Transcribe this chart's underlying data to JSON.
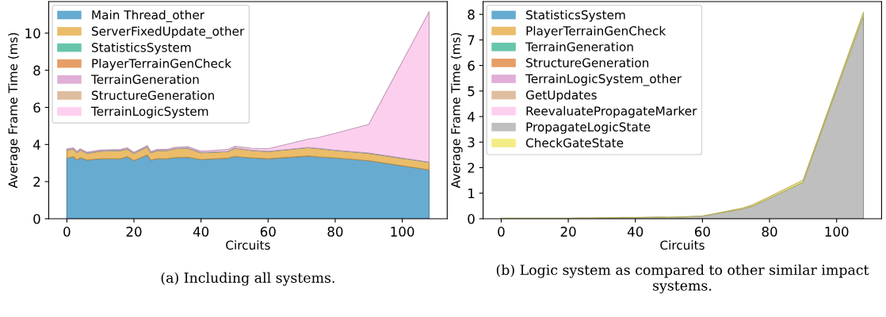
{
  "chart_data": [
    {
      "type": "area",
      "stacked": true,
      "xlabel": "Circuits",
      "ylabel": "Average Frame Time (ms)",
      "annotations": [
        "(a) Including all systems."
      ],
      "xlim": [
        -5.4,
        113.4
      ],
      "ylim": [
        0,
        11.7
      ],
      "xticks": [
        0,
        20,
        40,
        60,
        80,
        100
      ],
      "yticks": [
        0,
        2,
        4,
        6,
        8,
        10
      ],
      "legend": "top left",
      "grid": false,
      "x": [
        0,
        2,
        3,
        4,
        6,
        10,
        16,
        18,
        20,
        24,
        25,
        27,
        30,
        32,
        36,
        40,
        48,
        50,
        55,
        60,
        72,
        75,
        80,
        90,
        108
      ],
      "series": [
        {
          "name": "Main Thread_other",
          "color": "#67abd1",
          "values": [
            3.26,
            3.34,
            3.16,
            3.29,
            3.16,
            3.23,
            3.23,
            3.34,
            3.13,
            3.44,
            3.16,
            3.23,
            3.23,
            3.29,
            3.31,
            3.19,
            3.26,
            3.35,
            3.28,
            3.23,
            3.38,
            3.33,
            3.28,
            3.13,
            2.63
          ]
        },
        {
          "name": "ServerFixedUpdate_other",
          "color": "#ebbc69",
          "values": [
            0.45,
            0.42,
            0.4,
            0.42,
            0.37,
            0.41,
            0.44,
            0.42,
            0.39,
            0.44,
            0.4,
            0.44,
            0.44,
            0.48,
            0.49,
            0.37,
            0.36,
            0.45,
            0.4,
            0.39,
            0.45,
            0.45,
            0.4,
            0.4,
            0.41
          ]
        },
        {
          "name": "StatisticsSystem",
          "color": "#67c5ab",
          "values": [
            0.01,
            0.01,
            0.01,
            0.01,
            0.01,
            0.01,
            0.01,
            0.01,
            0.01,
            0.01,
            0.01,
            0.01,
            0.01,
            0.01,
            0.01,
            0.01,
            0.01,
            0.01,
            0.01,
            0.01,
            0.01,
            0.01,
            0.01,
            0.01,
            0.01
          ]
        },
        {
          "name": "PlayerTerrainGenCheck",
          "color": "#e69e66",
          "values": [
            null,
            null,
            null,
            null,
            null,
            null,
            null,
            null,
            null,
            null,
            null,
            null,
            null,
            null,
            null,
            null,
            null,
            null,
            null,
            null,
            null,
            null,
            null,
            null,
            null
          ]
        },
        {
          "name": "TerrainGeneration",
          "color": "#e0aed7",
          "values": [
            null,
            null,
            null,
            null,
            null,
            null,
            null,
            null,
            null,
            null,
            null,
            null,
            null,
            null,
            null,
            null,
            null,
            null,
            null,
            null,
            null,
            null,
            null,
            null,
            null
          ]
        },
        {
          "name": "StructureGeneration",
          "color": "#dfbda0",
          "values": [
            null,
            null,
            null,
            null,
            null,
            null,
            null,
            null,
            null,
            null,
            null,
            null,
            null,
            null,
            null,
            null,
            null,
            null,
            null,
            null,
            null,
            null,
            null,
            null,
            null
          ]
        },
        {
          "name": "TerrainLogicSystem",
          "color": "#fdcfef",
          "values": [
            0.05,
            0.05,
            0.05,
            0.05,
            0.05,
            0.05,
            0.05,
            0.05,
            0.05,
            0.05,
            0.05,
            0.05,
            0.06,
            0.06,
            0.07,
            0.07,
            0.1,
            0.09,
            0.11,
            0.14,
            0.45,
            0.59,
            0.91,
            1.54,
            8.11
          ]
        }
      ]
    },
    {
      "type": "area",
      "stacked": true,
      "xlabel": "Circuits",
      "ylabel": "Average Frame Time (ms)",
      "annotations": [
        "(b) Logic system as compared to other similar impact systems."
      ],
      "xlim": [
        -5.4,
        113.4
      ],
      "ylim": [
        0,
        8.5
      ],
      "xticks": [
        0,
        20,
        40,
        60,
        80,
        100
      ],
      "yticks": [
        0,
        1,
        2,
        3,
        4,
        5,
        6,
        7,
        8
      ],
      "legend": "top left",
      "grid": false,
      "x": [
        0,
        2,
        3,
        4,
        6,
        10,
        16,
        18,
        20,
        24,
        25,
        27,
        30,
        32,
        36,
        40,
        48,
        50,
        55,
        60,
        72,
        75,
        80,
        90,
        108
      ],
      "series": [
        {
          "name": "StatisticsSystem",
          "color": "#67abd1",
          "values": [
            null,
            null,
            null,
            null,
            null,
            null,
            null,
            null,
            null,
            null,
            null,
            null,
            null,
            null,
            null,
            null,
            null,
            null,
            null,
            null,
            null,
            null,
            null,
            null,
            null
          ]
        },
        {
          "name": "PlayerTerrainGenCheck",
          "color": "#ebbc69",
          "values": [
            null,
            null,
            null,
            null,
            null,
            null,
            null,
            null,
            null,
            null,
            null,
            null,
            null,
            null,
            null,
            null,
            null,
            null,
            null,
            null,
            null,
            null,
            null,
            null,
            null
          ]
        },
        {
          "name": "TerrainGeneration",
          "color": "#67c5ab",
          "values": [
            null,
            null,
            null,
            null,
            null,
            null,
            null,
            null,
            null,
            null,
            null,
            null,
            null,
            null,
            null,
            null,
            null,
            null,
            null,
            null,
            null,
            null,
            null,
            null,
            null
          ]
        },
        {
          "name": "StructureGeneration",
          "color": "#e69e66",
          "values": [
            null,
            null,
            null,
            null,
            null,
            null,
            null,
            null,
            null,
            null,
            null,
            null,
            null,
            null,
            null,
            null,
            null,
            null,
            null,
            null,
            null,
            null,
            null,
            null,
            null
          ]
        },
        {
          "name": "TerrainLogicSystem_other",
          "color": "#e0aed7",
          "values": [
            null,
            null,
            null,
            null,
            null,
            null,
            null,
            null,
            null,
            null,
            null,
            null,
            null,
            null,
            null,
            null,
            null,
            null,
            null,
            null,
            null,
            null,
            null,
            null,
            null
          ]
        },
        {
          "name": "GetUpdates",
          "color": "#dfbda0",
          "values": [
            null,
            null,
            null,
            null,
            null,
            null,
            null,
            null,
            null,
            null,
            null,
            null,
            null,
            null,
            null,
            null,
            null,
            null,
            null,
            null,
            null,
            null,
            null,
            null,
            null
          ]
        },
        {
          "name": "ReevaluatePropagateMarker",
          "color": "#fdcfef",
          "values": [
            null,
            null,
            null,
            null,
            null,
            null,
            null,
            null,
            null,
            null,
            null,
            null,
            null,
            null,
            null,
            null,
            null,
            null,
            null,
            null,
            null,
            null,
            null,
            null,
            null
          ]
        },
        {
          "name": "PropagateLogicState",
          "color": "#bfbfbf",
          "values": [
            0.01,
            0.01,
            0.01,
            0.01,
            0.01,
            0.01,
            0.01,
            0.01,
            0.01,
            0.02,
            0.02,
            0.02,
            0.03,
            0.03,
            0.04,
            0.04,
            0.06,
            0.05,
            0.07,
            0.1,
            0.38,
            0.5,
            0.8,
            1.43,
            7.95
          ]
        },
        {
          "name": "CheckGateState",
          "color": "#f4ed85",
          "values": [
            0.01,
            0.01,
            0.01,
            0.01,
            0.01,
            0.01,
            0.01,
            0.01,
            0.01,
            0.01,
            0.01,
            0.01,
            0.01,
            0.01,
            0.01,
            0.01,
            0.01,
            0.01,
            0.01,
            0.01,
            0.04,
            0.05,
            0.06,
            0.08,
            0.13
          ]
        }
      ]
    }
  ]
}
